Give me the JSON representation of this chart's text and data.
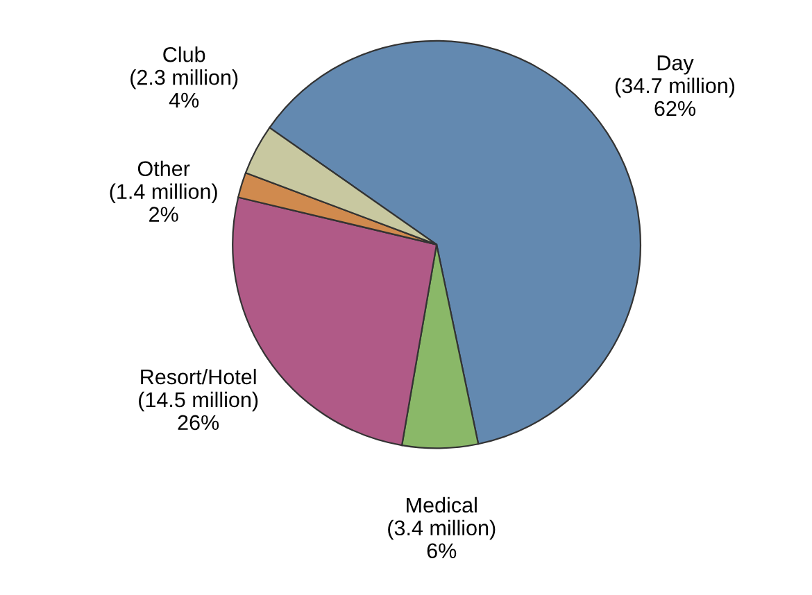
{
  "chart_data": {
    "type": "pie",
    "categories": [
      "Day",
      "Medical",
      "Resort/Hotel",
      "Other",
      "Club"
    ],
    "values": [
      62,
      6,
      26,
      2,
      4
    ],
    "value_labels": [
      "(34.7 million)\n62%",
      "(3.4 million)\n6%",
      "(14.5 million)\n26%",
      "(1.4 million)\n2%",
      "(2.3 million)\n4%"
    ],
    "colors": [
      "#6389b0",
      "#8ab868",
      "#b05a87",
      "#d08a4e",
      "#c8c8a0"
    ]
  }
}
